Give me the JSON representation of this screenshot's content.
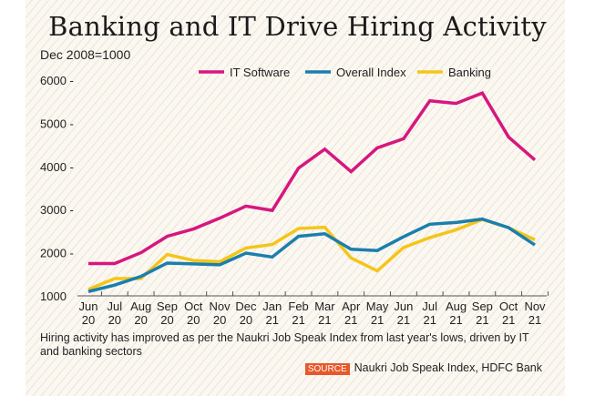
{
  "chart_data": {
    "type": "line",
    "title": "Banking and IT Drive Hiring Activity",
    "ylabel": "Dec 2008=1000",
    "xlabel": "",
    "ylim": [
      1000,
      6000
    ],
    "yticks": [
      1000,
      2000,
      3000,
      4000,
      5000,
      6000
    ],
    "legend_position": "top",
    "grid": false,
    "categories": [
      [
        "Jun",
        "20"
      ],
      [
        "Jul",
        "20"
      ],
      [
        "Aug",
        "20"
      ],
      [
        "Sep",
        "20"
      ],
      [
        "Oct",
        "20"
      ],
      [
        "Nov",
        "20"
      ],
      [
        "Dec",
        "20"
      ],
      [
        "Jan",
        "21"
      ],
      [
        "Feb",
        "21"
      ],
      [
        "Mar",
        "21"
      ],
      [
        "Apr",
        "21"
      ],
      [
        "May",
        "21"
      ],
      [
        "Jun",
        "21"
      ],
      [
        "Jul",
        "21"
      ],
      [
        "Aug",
        "21"
      ],
      [
        "Sep",
        "21"
      ],
      [
        "Oct",
        "21"
      ],
      [
        "Nov",
        "21"
      ]
    ],
    "series": [
      {
        "name": "IT Software",
        "color": "#d6177f",
        "values": [
          1750,
          1750,
          2000,
          2380,
          2550,
          2800,
          3080,
          2980,
          3960,
          4400,
          3880,
          4430,
          4640,
          5520,
          5460,
          5700,
          4680,
          4150
        ]
      },
      {
        "name": "Overall Index",
        "color": "#1a7fae",
        "values": [
          1100,
          1250,
          1450,
          1760,
          1740,
          1720,
          1990,
          1900,
          2380,
          2440,
          2080,
          2050,
          2370,
          2660,
          2700,
          2780,
          2580,
          2180
        ]
      },
      {
        "name": "Banking",
        "color": "#f5c518",
        "values": [
          1150,
          1400,
          1400,
          1960,
          1820,
          1790,
          2110,
          2190,
          2560,
          2590,
          1880,
          1580,
          2120,
          2350,
          2530,
          2770,
          2580,
          2300
        ]
      }
    ]
  },
  "caption": "Hiring activity has improved as per the Naukri Job Speak Index from last year's lows, driven by IT and banking sectors",
  "source_tag": "SOURCE",
  "source_text": "Naukri Job Speak Index, HDFC Bank"
}
